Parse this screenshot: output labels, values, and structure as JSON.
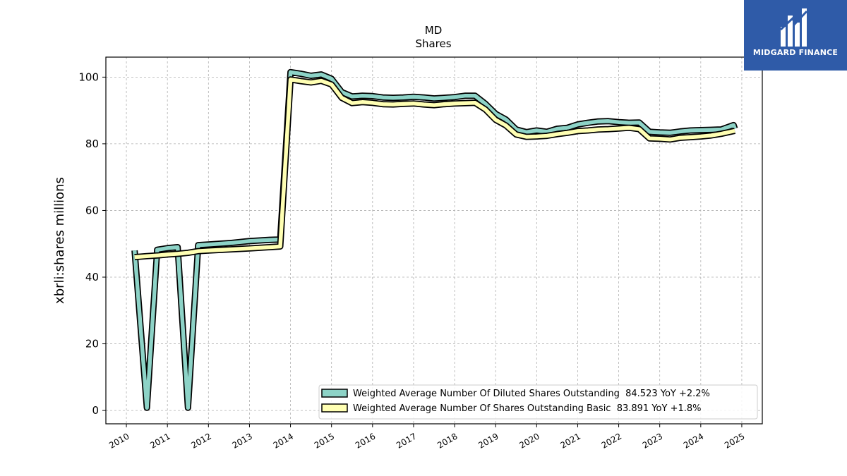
{
  "chart_data": {
    "type": "line",
    "title": "MD",
    "subtitle": "Shares",
    "ylabel": "xbrli:shares millions",
    "xlabel": "",
    "ylim": [
      -4,
      106
    ],
    "xlim": [
      2009.5,
      2025.5
    ],
    "yticks": [
      0,
      20,
      40,
      60,
      80,
      100
    ],
    "xticks": [
      "2010",
      "2011",
      "2012",
      "2013",
      "2014",
      "2015",
      "2016",
      "2017",
      "2018",
      "2019",
      "2020",
      "2021",
      "2022",
      "2023",
      "2024",
      "2025"
    ],
    "grid": true,
    "legend_position": "lower-right",
    "series": [
      {
        "name": "Weighted Average Number Of Diluted Shares Outstanding  84.523 YoY +2.2%",
        "color": "#8dd3c7",
        "points": [
          [
            2010.2,
            48.0
          ],
          [
            2010.5,
            0.8
          ],
          [
            2010.75,
            48.2
          ],
          [
            2011.0,
            48.7
          ],
          [
            2011.25,
            49.0
          ],
          [
            2011.5,
            0.8
          ],
          [
            2011.75,
            49.6
          ],
          [
            2012.0,
            49.8
          ],
          [
            2012.5,
            50.2
          ],
          [
            2013.0,
            50.8
          ],
          [
            2013.5,
            51.2
          ],
          [
            2013.75,
            51.3
          ],
          [
            2014.0,
            101.5
          ],
          [
            2014.25,
            101.0
          ],
          [
            2014.5,
            100.4
          ],
          [
            2014.75,
            100.8
          ],
          [
            2015.0,
            99.5
          ],
          [
            2015.25,
            95.5
          ],
          [
            2015.5,
            94.2
          ],
          [
            2015.75,
            94.4
          ],
          [
            2016.0,
            94.3
          ],
          [
            2016.25,
            93.9
          ],
          [
            2016.5,
            93.8
          ],
          [
            2016.75,
            93.9
          ],
          [
            2017.0,
            94.1
          ],
          [
            2017.25,
            93.9
          ],
          [
            2017.5,
            93.6
          ],
          [
            2017.75,
            93.8
          ],
          [
            2018.0,
            94.0
          ],
          [
            2018.25,
            94.4
          ],
          [
            2018.5,
            94.4
          ],
          [
            2018.75,
            92.0
          ],
          [
            2019.0,
            89.0
          ],
          [
            2019.25,
            87.3
          ],
          [
            2019.5,
            84.3
          ],
          [
            2019.75,
            83.5
          ],
          [
            2020.0,
            84.0
          ],
          [
            2020.25,
            83.6
          ],
          [
            2020.5,
            84.5
          ],
          [
            2020.75,
            84.8
          ],
          [
            2021.0,
            85.8
          ],
          [
            2021.25,
            86.3
          ],
          [
            2021.5,
            86.7
          ],
          [
            2021.75,
            86.8
          ],
          [
            2022.0,
            86.5
          ],
          [
            2022.25,
            86.3
          ],
          [
            2022.5,
            86.4
          ],
          [
            2022.75,
            83.6
          ],
          [
            2023.0,
            83.4
          ],
          [
            2023.25,
            83.3
          ],
          [
            2023.5,
            83.7
          ],
          [
            2023.75,
            84.0
          ],
          [
            2024.0,
            84.1
          ],
          [
            2024.25,
            84.2
          ],
          [
            2024.5,
            84.3
          ],
          [
            2024.8,
            85.6
          ],
          [
            2024.83,
            84.523
          ]
        ]
      },
      {
        "name": "Weighted Average Number Of Shares Outstanding Basic  83.891 YoY +1.8%",
        "color": "#ffffb3",
        "points": [
          [
            2010.2,
            46.0
          ],
          [
            2010.5,
            46.3
          ],
          [
            2010.75,
            46.5
          ],
          [
            2011.0,
            46.8
          ],
          [
            2011.25,
            47.0
          ],
          [
            2011.5,
            47.3
          ],
          [
            2011.75,
            47.8
          ],
          [
            2012.0,
            48.0
          ],
          [
            2012.5,
            48.3
          ],
          [
            2013.0,
            48.6
          ],
          [
            2013.5,
            49.0
          ],
          [
            2013.75,
            49.2
          ],
          [
            2014.0,
            99.3
          ],
          [
            2014.25,
            98.8
          ],
          [
            2014.5,
            98.4
          ],
          [
            2014.75,
            98.9
          ],
          [
            2015.0,
            97.8
          ],
          [
            2015.25,
            93.8
          ],
          [
            2015.5,
            92.2
          ],
          [
            2015.75,
            92.5
          ],
          [
            2016.0,
            92.3
          ],
          [
            2016.25,
            91.9
          ],
          [
            2016.5,
            91.8
          ],
          [
            2016.75,
            92.0
          ],
          [
            2017.0,
            92.1
          ],
          [
            2017.25,
            91.8
          ],
          [
            2017.5,
            91.6
          ],
          [
            2017.75,
            91.9
          ],
          [
            2018.0,
            92.1
          ],
          [
            2018.25,
            92.2
          ],
          [
            2018.5,
            92.3
          ],
          [
            2018.75,
            90.3
          ],
          [
            2019.0,
            87.2
          ],
          [
            2019.25,
            85.5
          ],
          [
            2019.5,
            82.8
          ],
          [
            2019.75,
            82.1
          ],
          [
            2020.0,
            82.2
          ],
          [
            2020.25,
            82.4
          ],
          [
            2020.5,
            82.9
          ],
          [
            2020.75,
            83.3
          ],
          [
            2021.0,
            83.8
          ],
          [
            2021.25,
            84.0
          ],
          [
            2021.5,
            84.3
          ],
          [
            2021.75,
            84.4
          ],
          [
            2022.0,
            84.6
          ],
          [
            2022.25,
            84.8
          ],
          [
            2022.5,
            84.4
          ],
          [
            2022.75,
            81.6
          ],
          [
            2023.0,
            81.5
          ],
          [
            2023.25,
            81.3
          ],
          [
            2023.5,
            81.8
          ],
          [
            2023.75,
            82.0
          ],
          [
            2024.0,
            82.2
          ],
          [
            2024.25,
            82.5
          ],
          [
            2024.5,
            83.0
          ],
          [
            2024.83,
            83.891
          ]
        ]
      }
    ]
  },
  "logo": {
    "text": "MIDGARD FINANCE",
    "background": "#2f5ba8"
  }
}
